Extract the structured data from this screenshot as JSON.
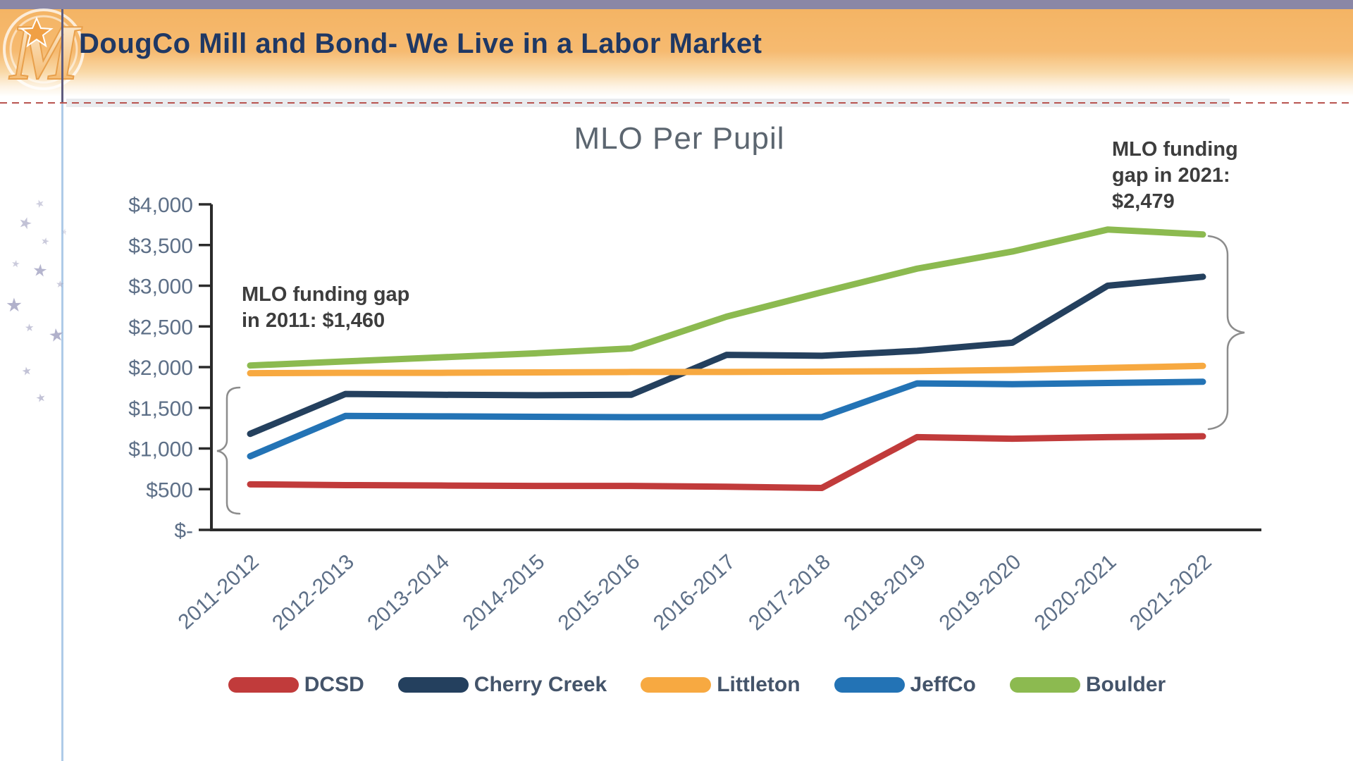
{
  "slide": {
    "title": "DougCo Mill and Bond- We Live in a Labor Market"
  },
  "chart_data": {
    "type": "line",
    "title": "MLO Per Pupil",
    "categories": [
      "2011-2012",
      "2012-2013",
      "2013-2014",
      "2014-2015",
      "2015-2016",
      "2016-2017",
      "2017-2018",
      "2018-2019",
      "2019-2020",
      "2020-2021",
      "2021-2022"
    ],
    "series": [
      {
        "name": "DCSD",
        "color": "#c13b3b",
        "values": [
          560,
          550,
          545,
          540,
          540,
          530,
          515,
          1140,
          1120,
          1140,
          1150
        ]
      },
      {
        "name": "Cherry Creek",
        "color": "#24405e",
        "values": [
          1180,
          1670,
          1660,
          1655,
          1660,
          2150,
          2140,
          2200,
          2300,
          3000,
          3110
        ]
      },
      {
        "name": "Littleton",
        "color": "#f7a941",
        "values": [
          1925,
          1930,
          1930,
          1935,
          1940,
          1940,
          1945,
          1950,
          1965,
          1990,
          2015
        ]
      },
      {
        "name": "JeffCo",
        "color": "#2373b5",
        "values": [
          905,
          1400,
          1395,
          1390,
          1385,
          1385,
          1385,
          1800,
          1790,
          1805,
          1820
        ]
      },
      {
        "name": "Boulder",
        "color": "#8cba50",
        "values": [
          2020,
          2070,
          2120,
          2170,
          2230,
          2620,
          2920,
          3210,
          3420,
          3690,
          3630
        ]
      }
    ],
    "y_ticks": [
      {
        "label": "$4,000",
        "value": 4000
      },
      {
        "label": "$3,500",
        "value": 3500
      },
      {
        "label": "$3,000",
        "value": 3000
      },
      {
        "label": "$2,500",
        "value": 2500
      },
      {
        "label": "$2,000",
        "value": 2000
      },
      {
        "label": "$1,500",
        "value": 1500
      },
      {
        "label": "$1,000",
        "value": 1000
      },
      {
        "label": "$500",
        "value": 500
      },
      {
        "label": "$-",
        "value": 0
      }
    ],
    "ylim": [
      0,
      4000
    ],
    "grid": false,
    "legend_position": "bottom",
    "annotations": [
      {
        "id": "gap2011",
        "lines": [
          "MLO funding gap",
          "in 2011: $1,460"
        ]
      },
      {
        "id": "gap2021",
        "lines": [
          "MLO funding",
          "gap in 2021:",
          "$2,479"
        ]
      }
    ]
  }
}
